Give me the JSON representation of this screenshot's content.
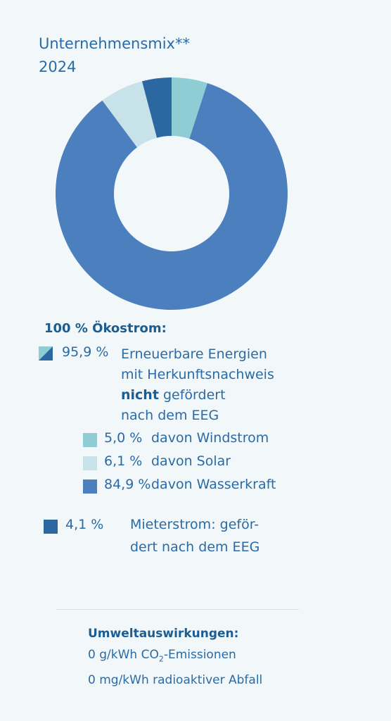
{
  "chart_data": {
    "type": "donut",
    "title": "Unternehmensmix**",
    "subtitle": "2024",
    "categories": [
      "davon Windstrom",
      "davon Wasserkraft",
      "davon Solar",
      "Mieterstrom: geför-\ndert nach dem EEG"
    ],
    "values": [
      5.0,
      84.9,
      6.1,
      4.1
    ],
    "value_labels": [
      "5,0 %",
      "84,9 %",
      "6,1 %",
      "4,1 %"
    ],
    "colors": [
      "#8fcdd4",
      "#4b7fbe",
      "#c8e2ea",
      "#2b67a0"
    ]
  },
  "legend": {
    "heading": "100 % Ökostrom:",
    "group_value_label": "95,9 %",
    "group_text": [
      "Erneuerbare Energien",
      "mit Herkunftsnachweis"
    ],
    "group_bold": "nicht",
    "group_text_2": [
      "gefördert",
      "nach dem EEG"
    ]
  },
  "footer": {
    "heading": "Umweltauswirkungen:",
    "line1": [
      "0 g/kWh CO",
      "2",
      "-Emissionen"
    ],
    "line2": "0 mg/kWh radioaktiver Abfall"
  }
}
